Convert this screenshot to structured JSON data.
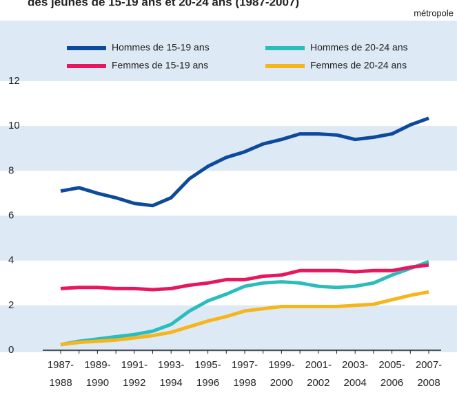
{
  "chart_data": {
    "type": "line",
    "title": "des jeunes de 15-19 ans et 20-24 ans (1987-2007)",
    "subtitle": "métropole",
    "categories": [
      "1987-\n1988",
      null,
      "1989-\n1990",
      null,
      "1991-\n1992",
      null,
      "1993-\n1994",
      null,
      "1995-\n1996",
      null,
      "1997-\n1998",
      null,
      "1999-\n2000",
      null,
      "2001-\n2002",
      null,
      "2003-\n2004",
      null,
      "2005-\n2006",
      null,
      "2007-\n2008"
    ],
    "series": [
      {
        "name": "Hommes de 15-19 ans",
        "color": "#0d4a9c",
        "values": [
          7.1,
          7.25,
          7.0,
          6.8,
          6.55,
          6.45,
          6.8,
          7.65,
          8.2,
          8.6,
          8.85,
          9.2,
          9.4,
          9.65,
          9.65,
          9.6,
          9.4,
          9.5,
          9.65,
          10.05,
          10.35
        ]
      },
      {
        "name": "Hommes de 20-24 ans",
        "color": "#2bbcbc",
        "values": [
          0.25,
          0.4,
          0.5,
          0.6,
          0.7,
          0.85,
          1.15,
          1.75,
          2.2,
          2.5,
          2.85,
          3.0,
          3.05,
          3.0,
          2.85,
          2.8,
          2.85,
          3.0,
          3.35,
          3.65,
          3.95
        ]
      },
      {
        "name": "Femmes de 15-19 ans",
        "color": "#e8175d",
        "values": [
          2.75,
          2.8,
          2.8,
          2.75,
          2.75,
          2.7,
          2.75,
          2.9,
          3.0,
          3.15,
          3.15,
          3.3,
          3.35,
          3.55,
          3.55,
          3.55,
          3.5,
          3.55,
          3.55,
          3.7,
          3.8
        ]
      },
      {
        "name": "Femmes de 20-24 ans",
        "color": "#f7b51c",
        "values": [
          0.25,
          0.35,
          0.4,
          0.45,
          0.55,
          0.65,
          0.8,
          1.05,
          1.3,
          1.5,
          1.75,
          1.85,
          1.95,
          1.95,
          1.95,
          1.95,
          2.0,
          2.05,
          2.25,
          2.45,
          2.6
        ]
      }
    ],
    "ylim": [
      0,
      12
    ],
    "yticks": [
      0,
      2,
      4,
      6,
      8,
      10,
      12
    ]
  }
}
